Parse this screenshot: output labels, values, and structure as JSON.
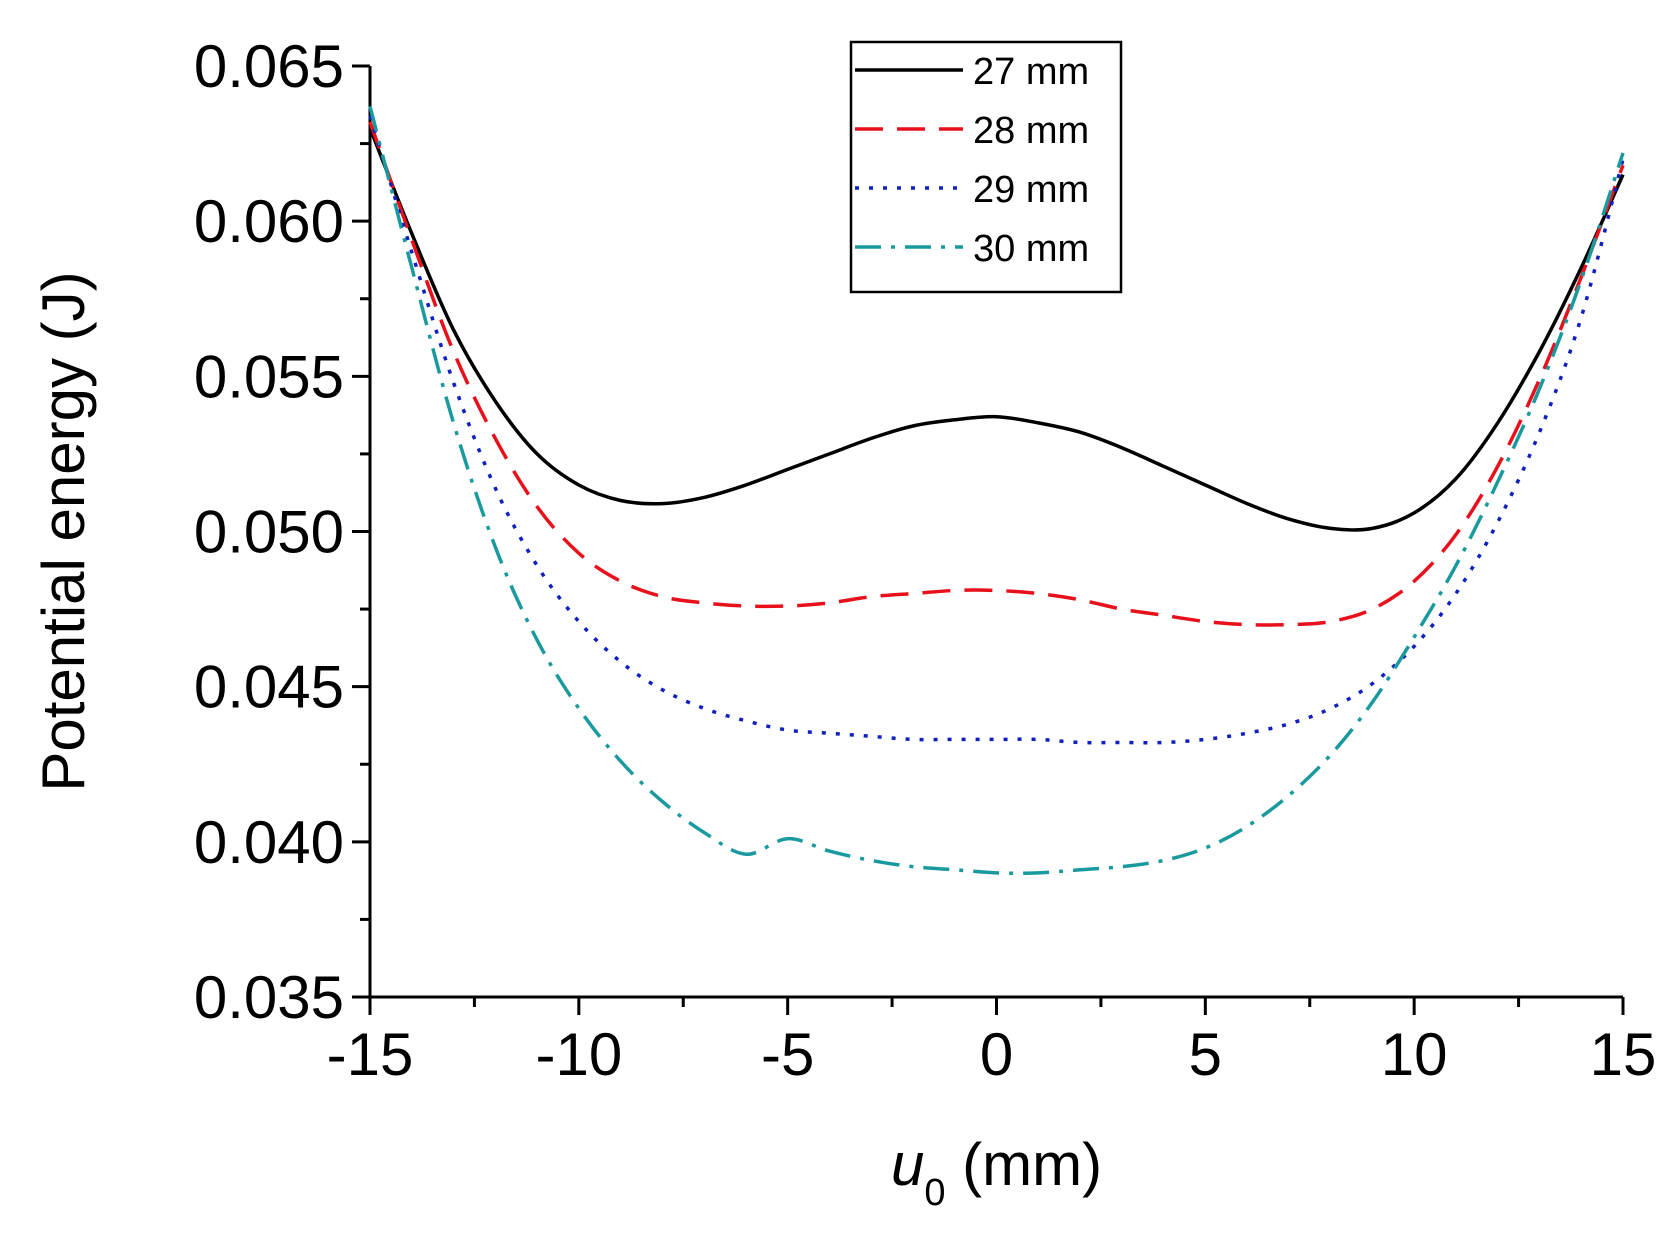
{
  "chart_data": {
    "type": "line",
    "title": "",
    "xlabel_main": "u",
    "xlabel_sub": "0",
    "xlabel_unit": " (mm)",
    "ylabel": "Potential energy (J)",
    "xlim": [
      -15,
      15
    ],
    "ylim": [
      0.035,
      0.065
    ],
    "x_ticks": [
      -15,
      -10,
      -5,
      0,
      5,
      10,
      15
    ],
    "x_tick_labels": [
      "-15",
      "-10",
      "-5",
      "0",
      "5",
      "10",
      "15"
    ],
    "y_ticks": [
      0.035,
      0.04,
      0.045,
      0.05,
      0.055,
      0.06,
      0.065
    ],
    "y_tick_labels": [
      "0.035",
      "0.040",
      "0.045",
      "0.050",
      "0.055",
      "0.060",
      "0.065"
    ],
    "legend_position": "top-center",
    "grid": false,
    "x": [
      -15,
      -14,
      -13,
      -12,
      -11,
      -10,
      -9,
      -8,
      -7,
      -6,
      -5,
      -4,
      -3,
      -2,
      -1,
      0,
      1,
      2,
      3,
      4,
      5,
      6,
      7,
      8,
      9,
      10,
      11,
      12,
      13,
      14,
      15
    ],
    "series": [
      {
        "name": "27 mm",
        "color": "#000000",
        "dash": "solid",
        "values": [
          0.063,
          0.0596,
          0.0565,
          0.0542,
          0.0525,
          0.0515,
          0.051,
          0.0509,
          0.0511,
          0.0515,
          0.052,
          0.0525,
          0.053,
          0.0534,
          0.0536,
          0.0537,
          0.0535,
          0.0532,
          0.0527,
          0.0521,
          0.0515,
          0.0509,
          0.0504,
          0.0501,
          0.0501,
          0.0506,
          0.0517,
          0.0535,
          0.0558,
          0.0585,
          0.0615
        ]
      },
      {
        "name": "28 mm",
        "color": "#e8101a",
        "dash": "dashed",
        "values": [
          0.0632,
          0.0594,
          0.0558,
          0.053,
          0.0508,
          0.0493,
          0.0484,
          0.0479,
          0.0477,
          0.0476,
          0.0476,
          0.0477,
          0.0479,
          0.048,
          0.0481,
          0.0481,
          0.048,
          0.0478,
          0.0475,
          0.0473,
          0.0471,
          0.047,
          0.047,
          0.0471,
          0.0475,
          0.0484,
          0.0499,
          0.0521,
          0.0549,
          0.0582,
          0.0618
        ]
      },
      {
        "name": "29 mm",
        "color": "#1020c0",
        "dash": "dotted",
        "values": [
          0.0634,
          0.059,
          0.0548,
          0.0514,
          0.0489,
          0.0471,
          0.0458,
          0.0449,
          0.0443,
          0.0439,
          0.0436,
          0.0435,
          0.0434,
          0.0433,
          0.0433,
          0.0433,
          0.0433,
          0.0432,
          0.0432,
          0.0432,
          0.0433,
          0.0435,
          0.0438,
          0.0443,
          0.0451,
          0.0463,
          0.048,
          0.0503,
          0.0532,
          0.0569,
          0.062
        ]
      },
      {
        "name": "30 mm",
        "color": "#1a9a9e",
        "dash": "dashdot",
        "values": [
          0.0637,
          0.0585,
          0.0535,
          0.0495,
          0.0465,
          0.0443,
          0.0426,
          0.0413,
          0.0403,
          0.0396,
          0.0401,
          0.0397,
          0.0394,
          0.0392,
          0.0391,
          0.039,
          0.039,
          0.0391,
          0.0392,
          0.0394,
          0.0398,
          0.0405,
          0.0415,
          0.0428,
          0.0445,
          0.0466,
          0.0489,
          0.0516,
          0.0546,
          0.0581,
          0.0622
        ]
      }
    ]
  }
}
